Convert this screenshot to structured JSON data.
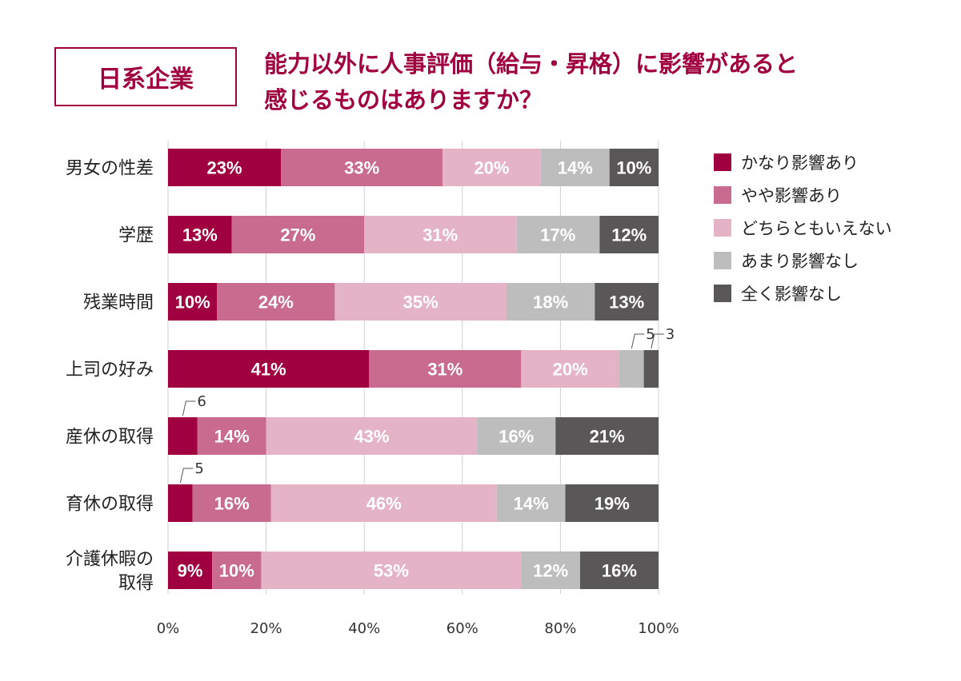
{
  "badge_label": "日系企業",
  "title_lines": [
    "能力以外に人事評価（給与・昇格）に影響があると",
    "感じるものはありますか？"
  ],
  "colors": {
    "accent": "#a0003f",
    "series": [
      "#a0003f",
      "#c96b8e",
      "#e4b4c6",
      "#bdbdbd",
      "#5a5759"
    ]
  },
  "chart_data": {
    "type": "bar",
    "orientation": "horizontal",
    "stacked": true,
    "categories": [
      "男女の性差",
      "学歴",
      "残業時間",
      "上司の好み",
      "産休の取得",
      "育休の取得",
      "介護休暇の取得"
    ],
    "category_lines": [
      [
        "男女の性差"
      ],
      [
        "学歴"
      ],
      [
        "残業時間"
      ],
      [
        "上司の好み"
      ],
      [
        "産休の取得"
      ],
      [
        "育休の取得"
      ],
      [
        "介護休暇の",
        "取得"
      ]
    ],
    "series": [
      {
        "name": "かなり影響あり",
        "values": [
          23,
          13,
          10,
          41,
          6,
          5,
          9
        ]
      },
      {
        "name": "やや影響あり",
        "values": [
          33,
          27,
          24,
          31,
          14,
          16,
          10
        ]
      },
      {
        "name": "どちらともいえない",
        "values": [
          20,
          31,
          35,
          20,
          43,
          46,
          53
        ]
      },
      {
        "name": "あまり影響なし",
        "values": [
          14,
          17,
          18,
          5,
          16,
          14,
          12
        ]
      },
      {
        "name": "全く影響なし",
        "values": [
          10,
          12,
          13,
          3,
          21,
          19,
          16
        ]
      }
    ],
    "xlim": [
      0,
      100
    ],
    "x_ticks": [
      "0%",
      "20%",
      "40%",
      "60%",
      "80%",
      "100%"
    ],
    "grid": true,
    "legend_position": "right"
  }
}
